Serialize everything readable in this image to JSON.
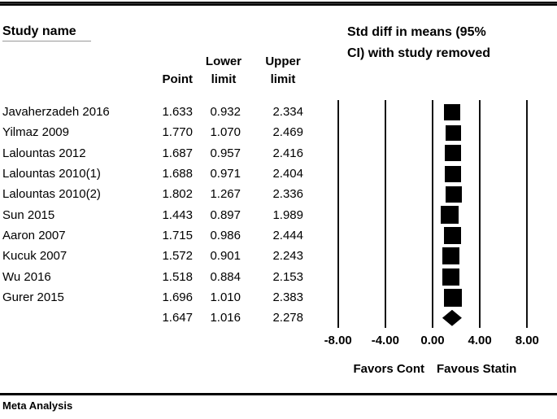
{
  "header": {
    "study_col_title": "Study name",
    "plot_title_line1": "Std diff in means (95%",
    "plot_title_line2": "CI) with study removed",
    "col_point": "Point",
    "col_lower_line1": "Lower",
    "col_lower_line2": "limit",
    "col_upper_line1": "Upper",
    "col_upper_line2": "limit"
  },
  "footer": {
    "label": "Meta Analysis"
  },
  "colors": {
    "ink": "#000000",
    "background": "#ffffff"
  },
  "chart_data": {
    "type": "forest",
    "title": "Std diff in means (95% CI) with study removed",
    "xlabel_left": "Favors Cont",
    "xlabel_right": "Favous Statin",
    "x_axis": {
      "ticks": [
        -8,
        -4,
        0,
        4,
        8
      ],
      "tick_labels": [
        "-8.00",
        "-4.00",
        "0.00",
        "4.00",
        "8.00"
      ],
      "range": [
        -9,
        9
      ],
      "grid": true
    },
    "value_decimals": 3,
    "studies": [
      {
        "study": "Javaherzadeh 2016",
        "point": 1.633,
        "lower": 0.932,
        "upper": 2.334,
        "marker": "square",
        "size": 20
      },
      {
        "study": "Yilmaz 2009",
        "point": 1.77,
        "lower": 1.07,
        "upper": 2.469,
        "marker": "square",
        "size": 19
      },
      {
        "study": "Lalountas 2012",
        "point": 1.687,
        "lower": 0.957,
        "upper": 2.416,
        "marker": "square",
        "size": 20
      },
      {
        "study": "Lalountas 2010(1)",
        "point": 1.688,
        "lower": 0.971,
        "upper": 2.404,
        "marker": "square",
        "size": 20
      },
      {
        "study": "Lalountas 2010(2)",
        "point": 1.802,
        "lower": 1.267,
        "upper": 2.336,
        "marker": "square",
        "size": 20
      },
      {
        "study": "Sun 2015",
        "point": 1.443,
        "lower": 0.897,
        "upper": 1.989,
        "marker": "square",
        "size": 22
      },
      {
        "study": "Aaron 2007",
        "point": 1.715,
        "lower": 0.986,
        "upper": 2.444,
        "marker": "square",
        "size": 21
      },
      {
        "study": "Kucuk 2007",
        "point": 1.572,
        "lower": 0.901,
        "upper": 2.243,
        "marker": "square",
        "size": 21
      },
      {
        "study": "Wu 2016",
        "point": 1.518,
        "lower": 0.884,
        "upper": 2.153,
        "marker": "square",
        "size": 21
      },
      {
        "study": "Gurer 2015",
        "point": 1.696,
        "lower": 1.01,
        "upper": 2.383,
        "marker": "square",
        "size": 22
      }
    ],
    "overall": {
      "study": "",
      "point": 1.647,
      "lower": 1.016,
      "upper": 2.278,
      "marker": "diamond",
      "width": 24,
      "height": 20
    }
  }
}
